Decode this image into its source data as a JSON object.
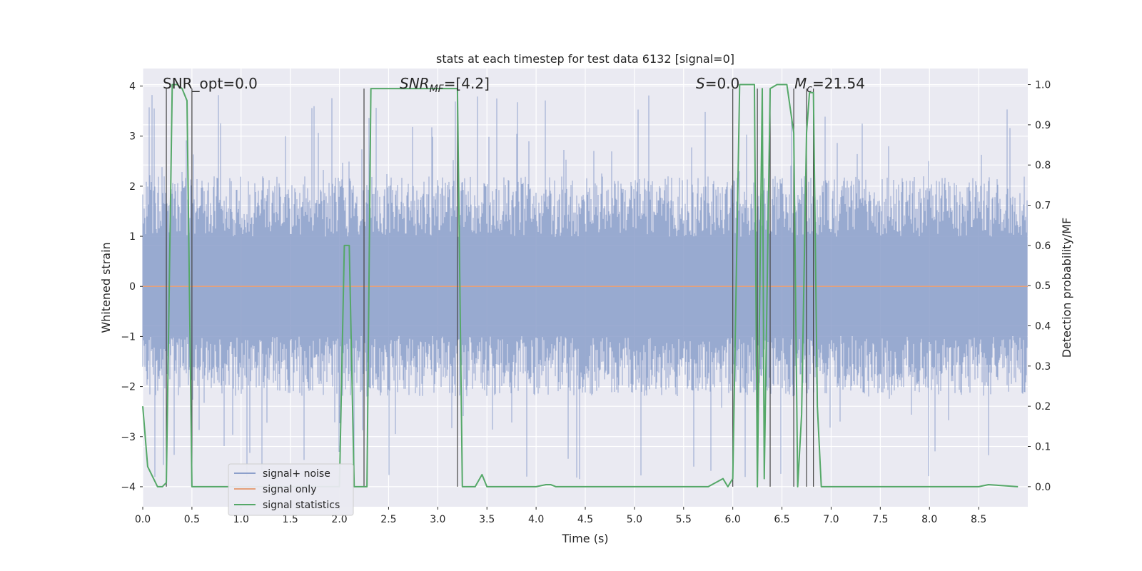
{
  "chart_data": {
    "type": "line",
    "title": "stats at each timestep for test data 6132 [signal=0]",
    "xlabel": "Time (s)",
    "ylabel": "Whitened strain",
    "ylabel_right": "Detection probability/MF",
    "xlim": [
      0.0,
      9.0
    ],
    "ylim": [
      -4.4,
      4.35
    ],
    "ylim_right": [
      -0.05,
      1.04
    ],
    "x_ticks": [
      0.0,
      0.5,
      1.0,
      1.5,
      2.0,
      2.5,
      3.0,
      3.5,
      4.0,
      4.5,
      5.0,
      5.5,
      6.0,
      6.5,
      7.0,
      7.5,
      8.0,
      8.5
    ],
    "x_tick_labels": [
      "0.0",
      "0.5",
      "1.0",
      "1.5",
      "2.0",
      "2.5",
      "3.0",
      "3.5",
      "4.0",
      "4.5",
      "5.0",
      "5.5",
      "6.0",
      "6.5",
      "7.0",
      "7.5",
      "8.0",
      "8.5"
    ],
    "y_ticks": [
      -4,
      -3,
      -2,
      -1,
      0,
      1,
      2,
      3,
      4
    ],
    "y_tick_labels": [
      "−4",
      "−3",
      "−2",
      "−1",
      "0",
      "1",
      "2",
      "3",
      "4"
    ],
    "y_right_ticks": [
      0.0,
      0.1,
      0.2,
      0.3,
      0.4,
      0.5,
      0.6,
      0.7,
      0.8,
      0.9,
      1.0
    ],
    "y_right_tick_labels": [
      "0.0",
      "0.1",
      "0.2",
      "0.3",
      "0.4",
      "0.5",
      "0.6",
      "0.7",
      "0.8",
      "0.9",
      "1.0"
    ],
    "grid": true,
    "legend_position": "lower-left",
    "annotations": [
      {
        "text": "SNR_opt=0.0",
        "x": 0.2,
        "y": 4.1
      },
      {
        "text": "SNR_MF=[4.2]",
        "x": 2.6,
        "y": 4.1
      },
      {
        "text": "S=0.0",
        "x": 5.6,
        "y": 4.1
      },
      {
        "text": "M_c=21.54",
        "x": 6.6,
        "y": 4.1
      }
    ],
    "vlines": [
      0.24,
      0.5,
      2.25,
      3.2,
      6.0,
      6.25,
      6.38,
      6.62,
      6.75,
      6.82
    ],
    "series": [
      {
        "name": "signal+ noise",
        "color": "#8da0cb",
        "axis": "left",
        "description_kind": "noise",
        "amplitude_typical": 2.2,
        "amplitude_peak": 3.9
      },
      {
        "name": "signal only",
        "color": "#e5a07a",
        "axis": "left",
        "x": [
          0.0,
          9.0
        ],
        "y": [
          0.0,
          0.0
        ]
      },
      {
        "name": "signal statistics",
        "color": "#55a868",
        "axis": "right",
        "x": [
          0.0,
          0.05,
          0.15,
          0.2,
          0.24,
          0.3,
          0.35,
          0.4,
          0.45,
          0.5,
          0.55,
          0.6,
          0.8,
          1.0,
          1.5,
          1.9,
          2.0,
          2.05,
          2.1,
          2.15,
          2.2,
          2.28,
          2.32,
          2.5,
          2.75,
          3.0,
          3.15,
          3.2,
          3.25,
          3.3,
          3.38,
          3.45,
          3.5,
          3.6,
          3.8,
          4.0,
          4.1,
          4.15,
          4.2,
          4.5,
          5.0,
          5.5,
          5.75,
          5.9,
          5.95,
          6.0,
          6.07,
          6.15,
          6.22,
          6.25,
          6.3,
          6.32,
          6.38,
          6.45,
          6.5,
          6.55,
          6.62,
          6.66,
          6.7,
          6.75,
          6.78,
          6.82,
          6.86,
          6.9,
          6.95,
          7.0,
          7.5,
          8.0,
          8.5,
          8.6,
          8.9
        ],
        "y": [
          0.2,
          0.05,
          0.0,
          0.0,
          0.01,
          1.0,
          1.0,
          0.99,
          0.96,
          0.0,
          0.0,
          0.0,
          0.0,
          0.0,
          0.0,
          0.0,
          0.0,
          0.6,
          0.6,
          0.0,
          0.0,
          0.0,
          0.99,
          0.99,
          0.99,
          0.99,
          0.99,
          0.99,
          0.0,
          0.0,
          0.0,
          0.03,
          0.0,
          0.0,
          0.0,
          0.0,
          0.005,
          0.005,
          0.0,
          0.0,
          0.0,
          0.0,
          0.0,
          0.02,
          0.0,
          0.02,
          1.0,
          1.0,
          1.0,
          0.0,
          0.99,
          0.02,
          0.99,
          1.0,
          1.0,
          1.0,
          0.88,
          0.0,
          0.18,
          0.88,
          0.98,
          0.98,
          0.2,
          0.0,
          0.0,
          0.0,
          0.0,
          0.0,
          0.0,
          0.005,
          0.0
        ]
      }
    ]
  }
}
